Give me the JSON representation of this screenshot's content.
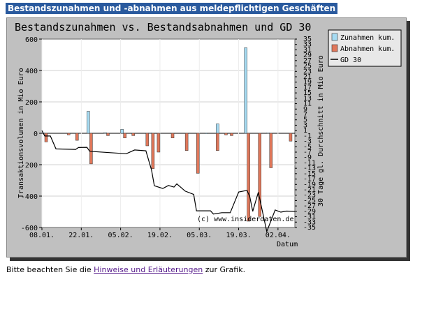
{
  "page": {
    "heading": "Bestandszunahmen und -abnahmen aus meldepflichtigen Geschäften",
    "note_before": "Bitte beachten Sie die ",
    "note_link": "Hinweise und Erläuterungen",
    "note_after": " zur Grafik."
  },
  "chart_data": {
    "type": "bar",
    "title": "Bestandszunahmen vs. Bestandsabnahmen und GD 30",
    "ylabel": "Transaktionsvolumen in Mio Euro",
    "y2label": "30 Tage gl. Durchschnitt in Mio Euro",
    "xlabel": "Datum",
    "watermark": "(c) www.insiderdaten.de",
    "ylim": [
      -600,
      600
    ],
    "y2lim": [
      -35,
      35
    ],
    "yticks": [
      "600",
      "400",
      "200",
      "0",
      "-200",
      "-400",
      "-600"
    ],
    "y2ticks": [
      "35",
      "33",
      "31",
      "29",
      "27",
      "25",
      "23",
      "21",
      "19",
      "17",
      "15",
      "13",
      "11",
      "9",
      "7",
      "5",
      "3",
      "1",
      "-1",
      "-3",
      "-5",
      "-7",
      "-9",
      "-11",
      "-13",
      "-15",
      "-17",
      "-19",
      "-21",
      "-23",
      "-25",
      "-27",
      "-29",
      "-31",
      "-33",
      "-35"
    ],
    "xticks": [
      "08.01.",
      "22.01.",
      "05.02.",
      "19.02.",
      "05.03.",
      "19.03.",
      "02.04."
    ],
    "x_start": "2007-01-08",
    "x_end": "2007-04-08",
    "grid": true,
    "legend_position": "top-right",
    "colors": {
      "zunahmen": "#a6dbf2",
      "abnahmen": "#e0775a",
      "gd30": "#000000",
      "plot_bg": "#ffffff",
      "frame_bg": "#c0c0c0"
    },
    "series": [
      {
        "name": "Zunahmen kum.",
        "kind": "bar",
        "points": [
          {
            "date": "2007-01-09",
            "value": 3
          },
          {
            "date": "2007-01-25",
            "value": 140
          },
          {
            "date": "2007-01-31",
            "value": 4
          },
          {
            "date": "2007-02-06",
            "value": 25
          },
          {
            "date": "2007-02-16",
            "value": 3
          },
          {
            "date": "2007-03-08",
            "value": 2
          },
          {
            "date": "2007-03-12",
            "value": 60
          },
          {
            "date": "2007-03-22",
            "value": 545
          },
          {
            "date": "2007-03-30",
            "value": 3
          }
        ]
      },
      {
        "name": "Abnahmen kum.",
        "kind": "bar",
        "points": [
          {
            "date": "2007-01-09",
            "value": -55
          },
          {
            "date": "2007-01-17",
            "value": -10
          },
          {
            "date": "2007-01-20",
            "value": -45
          },
          {
            "date": "2007-01-25",
            "value": -195
          },
          {
            "date": "2007-01-31",
            "value": -15
          },
          {
            "date": "2007-02-06",
            "value": -30
          },
          {
            "date": "2007-02-09",
            "value": -15
          },
          {
            "date": "2007-02-14",
            "value": -80
          },
          {
            "date": "2007-02-16",
            "value": -225
          },
          {
            "date": "2007-02-18",
            "value": -120
          },
          {
            "date": "2007-02-23",
            "value": -30
          },
          {
            "date": "2007-02-28",
            "value": -110
          },
          {
            "date": "2007-03-04",
            "value": -255
          },
          {
            "date": "2007-03-11",
            "value": -110
          },
          {
            "date": "2007-03-14",
            "value": -10
          },
          {
            "date": "2007-03-16",
            "value": -15
          },
          {
            "date": "2007-03-22",
            "value": -560
          },
          {
            "date": "2007-03-26",
            "value": -530
          },
          {
            "date": "2007-03-30",
            "value": -220
          },
          {
            "date": "2007-04-06",
            "value": -50
          }
        ]
      },
      {
        "name": "GD 30",
        "kind": "line",
        "points": [
          {
            "date": "2007-01-08",
            "value": 1
          },
          {
            "date": "2007-01-09",
            "value": -1
          },
          {
            "date": "2007-01-11",
            "value": -1
          },
          {
            "date": "2007-01-13",
            "value": -5.8
          },
          {
            "date": "2007-01-20",
            "value": -6
          },
          {
            "date": "2007-01-21",
            "value": -5.3
          },
          {
            "date": "2007-01-24",
            "value": -5.2
          },
          {
            "date": "2007-01-25",
            "value": -6.7
          },
          {
            "date": "2007-02-07",
            "value": -7.6
          },
          {
            "date": "2007-02-10",
            "value": -6.2
          },
          {
            "date": "2007-02-14",
            "value": -6.5
          },
          {
            "date": "2007-02-16",
            "value": -13.7
          },
          {
            "date": "2007-02-17",
            "value": -19.5
          },
          {
            "date": "2007-02-20",
            "value": -20.5
          },
          {
            "date": "2007-02-22",
            "value": -19.4
          },
          {
            "date": "2007-02-24",
            "value": -20
          },
          {
            "date": "2007-02-25",
            "value": -18.8
          },
          {
            "date": "2007-02-28",
            "value": -21.5
          },
          {
            "date": "2007-03-03",
            "value": -22.7
          },
          {
            "date": "2007-03-04",
            "value": -28.8
          },
          {
            "date": "2007-03-09",
            "value": -28.8
          },
          {
            "date": "2007-03-10",
            "value": -30
          },
          {
            "date": "2007-03-13",
            "value": -29.5
          },
          {
            "date": "2007-03-16",
            "value": -29.5
          },
          {
            "date": "2007-03-19",
            "value": -21.8
          },
          {
            "date": "2007-03-22",
            "value": -21.2
          },
          {
            "date": "2007-03-23",
            "value": -23.7
          },
          {
            "date": "2007-03-24",
            "value": -29
          },
          {
            "date": "2007-03-26",
            "value": -21.9
          },
          {
            "date": "2007-03-29",
            "value": -36.5
          },
          {
            "date": "2007-04-01",
            "value": -28.5
          },
          {
            "date": "2007-04-03",
            "value": -29.3
          },
          {
            "date": "2007-04-05",
            "value": -28.9
          },
          {
            "date": "2007-04-08",
            "value": -29
          }
        ]
      }
    ]
  }
}
